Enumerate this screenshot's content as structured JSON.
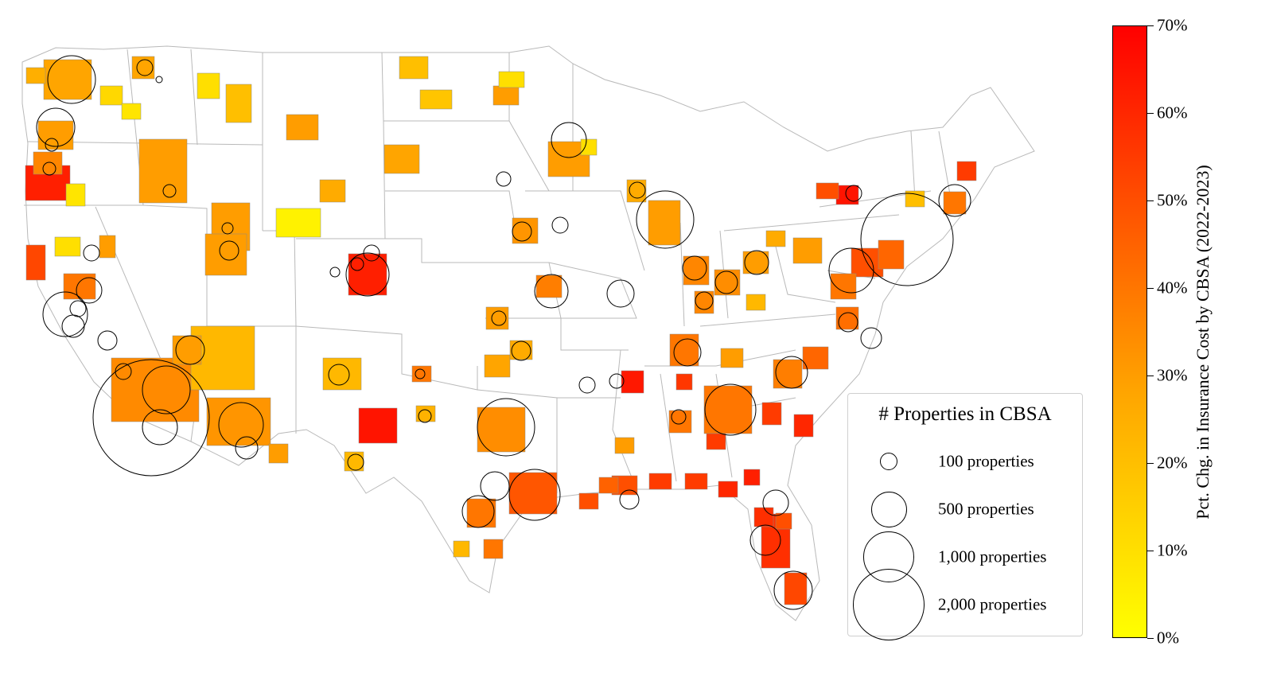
{
  "map": {
    "type": "choropleth-with-proportional-circles",
    "region": "Contiguous United States",
    "color_scale": {
      "min_color": "#ffff00",
      "mid_color": "#ffa500",
      "max_color": "#ff0000",
      "title": "Pct. Chg. in Insurance Cost by CBSA (2022-2023)",
      "ticks": [
        "0%",
        "10%",
        "20%",
        "30%",
        "40%",
        "50%",
        "60%",
        "70%"
      ]
    },
    "size_legend": {
      "title": "# Properties in CBSA",
      "entries": [
        {
          "label": "100 properties",
          "value": 100
        },
        {
          "label": "500 properties",
          "value": 500
        },
        {
          "label": "1,000 properties",
          "value": 1000
        },
        {
          "label": "2,000 properties",
          "value": 2000
        }
      ]
    },
    "colors": {
      "state_border": "#b9b9b9",
      "land": "#ffffff",
      "circle_stroke": "#000000"
    }
  }
}
